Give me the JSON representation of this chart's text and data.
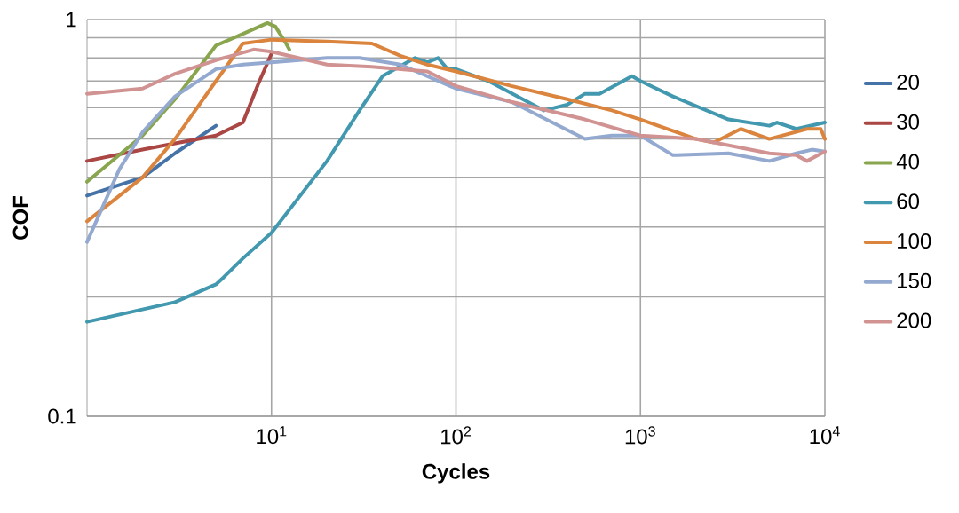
{
  "chart_data": {
    "type": "line",
    "xlabel": "Cycles",
    "ylabel": "COF",
    "log": "xy",
    "grid": true,
    "legend": "right",
    "marker": "none",
    "line_style": "solid",
    "xlim": [
      1,
      10000
    ],
    "ylim": [
      0.1,
      1
    ],
    "xticks": [
      {
        "value": 10,
        "label": "10$^{1}$"
      },
      {
        "value": 100,
        "label": "10$^{2}$"
      },
      {
        "value": 1000,
        "label": "10$^{3}$"
      },
      {
        "value": 10000,
        "label": "10$^{4}$"
      }
    ],
    "yticks": [
      0.1,
      {
        "value": 0.2,
        "label": null
      },
      {
        "value": 0.3,
        "label": null
      },
      {
        "value": 0.4,
        "label": null
      },
      {
        "value": 0.5,
        "label": null
      },
      {
        "value": 0.6,
        "label": null
      },
      {
        "value": 0.7,
        "label": null
      },
      {
        "value": 0.8,
        "label": null
      },
      {
        "value": 0.9,
        "label": null
      },
      1
    ],
    "series": [
      {
        "name": "20",
        "color": "#4572a7",
        "x": [
          1,
          2,
          3,
          5
        ],
        "values": [
          0.36,
          0.4,
          0.46,
          0.54
        ]
      },
      {
        "name": "30",
        "color": "#aa4643",
        "x": [
          1,
          2,
          5,
          7,
          8.5,
          10
        ],
        "values": [
          0.44,
          0.47,
          0.51,
          0.55,
          0.69,
          0.82
        ]
      },
      {
        "name": "40",
        "color": "#89a54e",
        "x": [
          1,
          2,
          3,
          5,
          7,
          9.5,
          10.5,
          12,
          12.5
        ],
        "values": [
          0.39,
          0.51,
          0.63,
          0.86,
          0.92,
          0.98,
          0.96,
          0.87,
          0.84
        ]
      },
      {
        "name": "60",
        "color": "#4198af",
        "x": [
          1,
          3,
          5,
          5.5,
          7,
          10,
          20,
          30,
          40,
          60,
          70,
          80,
          90,
          100,
          150,
          300,
          400,
          500,
          600,
          900,
          1000,
          1500,
          3000,
          5000,
          5500,
          7000,
          10000
        ],
        "values": [
          0.173,
          0.194,
          0.215,
          0.224,
          0.25,
          0.29,
          0.44,
          0.59,
          0.72,
          0.8,
          0.78,
          0.8,
          0.75,
          0.75,
          0.7,
          0.59,
          0.61,
          0.65,
          0.65,
          0.72,
          0.7,
          0.64,
          0.56,
          0.54,
          0.55,
          0.53,
          0.55
        ]
      },
      {
        "name": "100",
        "color": "#db843d",
        "x": [
          1,
          2,
          3,
          5,
          7,
          10,
          20,
          35,
          50,
          70,
          100,
          200,
          400,
          700,
          1000,
          2000,
          2500,
          3500,
          5000,
          8000,
          9500,
          10000
        ],
        "values": [
          0.31,
          0.4,
          0.5,
          0.7,
          0.87,
          0.89,
          0.88,
          0.87,
          0.81,
          0.77,
          0.74,
          0.68,
          0.63,
          0.59,
          0.56,
          0.5,
          0.49,
          0.53,
          0.5,
          0.53,
          0.53,
          0.5
        ]
      },
      {
        "name": "150",
        "color": "#93a9cf",
        "x": [
          1,
          1.5,
          2,
          3,
          5,
          7,
          10,
          20,
          30,
          50,
          100,
          200,
          500,
          700,
          1000,
          1500,
          3000,
          5000,
          7000,
          8500,
          10000
        ],
        "values": [
          0.275,
          0.42,
          0.52,
          0.64,
          0.75,
          0.77,
          0.78,
          0.8,
          0.8,
          0.77,
          0.67,
          0.62,
          0.5,
          0.51,
          0.51,
          0.455,
          0.46,
          0.44,
          0.46,
          0.47,
          0.465
        ]
      },
      {
        "name": "200",
        "color": "#d19392",
        "x": [
          1,
          2,
          3,
          5,
          8,
          10,
          20,
          35,
          70,
          100,
          200,
          500,
          1000,
          2000,
          5000,
          7000,
          8000,
          10000
        ],
        "values": [
          0.65,
          0.67,
          0.73,
          0.79,
          0.84,
          0.83,
          0.77,
          0.76,
          0.74,
          0.68,
          0.62,
          0.56,
          0.51,
          0.5,
          0.46,
          0.455,
          0.44,
          0.465
        ]
      }
    ]
  }
}
